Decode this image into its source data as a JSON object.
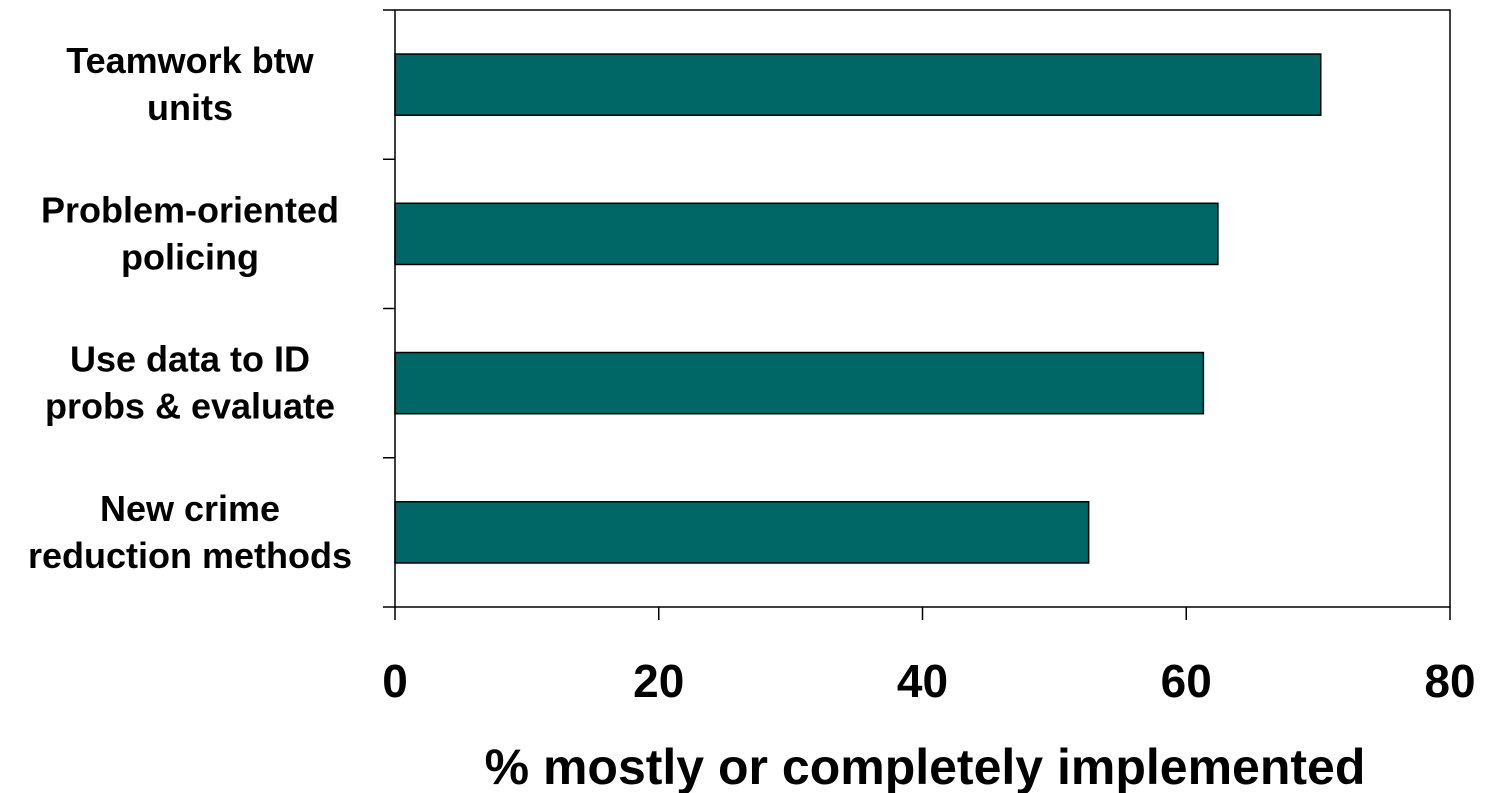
{
  "chart_data": {
    "type": "bar",
    "orientation": "horizontal",
    "categories": [
      [
        "Teamwork btw",
        "units"
      ],
      [
        "Problem-oriented",
        "policing"
      ],
      [
        "Use data to ID",
        "probs & evaluate"
      ],
      [
        "New crime",
        "reduction methods"
      ]
    ],
    "values": [
      70.2,
      62.4,
      61.3,
      52.6
    ],
    "xlabel": "% mostly or completely implemented",
    "ylabel": "",
    "title": "",
    "xlim": [
      0,
      80
    ],
    "xticks": [
      "0",
      "20",
      "40",
      "60",
      "80"
    ],
    "grid": false,
    "legend": "none",
    "bar_color": "#006666",
    "bar_edge_color": "#000000"
  }
}
